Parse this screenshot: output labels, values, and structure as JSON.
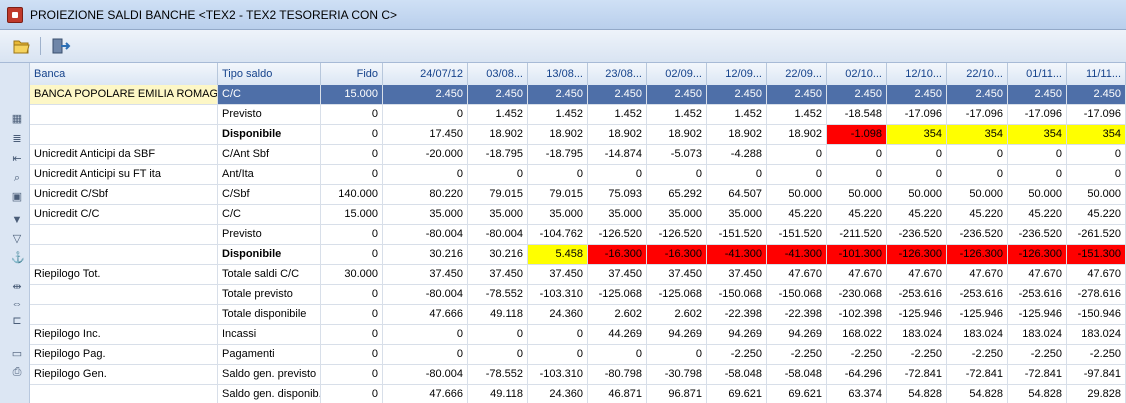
{
  "window": {
    "title": "PROIEZIONE SALDI BANCHE <TEX2 - TEX2 TESORERIA CON C>"
  },
  "toolbar": {
    "icons": [
      "open-folder-icon",
      "exit-icon"
    ]
  },
  "side_icons": [
    "grid-icon",
    "list-icon",
    "import-icon",
    "search-icon",
    "calculator-icon",
    "filter-icon",
    "filter-remove-icon",
    "anchor-icon",
    "expand-columns-icon",
    "collapse-columns-icon",
    "clear-icon",
    "monitor-icon",
    "print-icon"
  ],
  "colors": {
    "selected_row": "#4e6fa8",
    "negative": "#ff0000",
    "warning": "#ffff00",
    "header_text": "#15428b"
  },
  "columns": [
    "Banca",
    "Tipo saldo",
    "Fido",
    "24/07/12",
    "03/08...",
    "13/08...",
    "23/08...",
    "02/09...",
    "12/09...",
    "22/09...",
    "02/10...",
    "12/10...",
    "22/10...",
    "01/11...",
    "11/11..."
  ],
  "rows": [
    {
      "banca": "BANCA POPOLARE EMILIA ROMAGNA",
      "tipo": "C/C",
      "fido": "15.000",
      "values": [
        "2.450",
        "2.450",
        "2.450",
        "2.450",
        "2.450",
        "2.450",
        "2.450",
        "2.450",
        "2.450",
        "2.450",
        "2.450",
        "2.450"
      ],
      "sel": true
    },
    {
      "banca": "",
      "tipo": "Previsto",
      "fido": "0",
      "values": [
        "0",
        "1.452",
        "1.452",
        "1.452",
        "1.452",
        "1.452",
        "1.452",
        "-18.548",
        "-17.096",
        "-17.096",
        "-17.096",
        "-17.096"
      ]
    },
    {
      "banca": "",
      "tipo": "Disponibile",
      "fido": "0",
      "bold": true,
      "values": [
        "17.450",
        "18.902",
        "18.902",
        "18.902",
        "18.902",
        "18.902",
        "18.902",
        "-1.098",
        "354",
        "354",
        "354",
        "354"
      ],
      "marks": [
        "",
        "",
        "",
        "",
        "",
        "",
        "",
        "r",
        "y",
        "y",
        "y",
        "y"
      ]
    },
    {
      "banca": "Unicredit Anticipi da SBF",
      "tipo": "C/Ant Sbf",
      "fido": "0",
      "values": [
        "-20.000",
        "-18.795",
        "-18.795",
        "-14.874",
        "-5.073",
        "-4.288",
        "0",
        "0",
        "0",
        "0",
        "0",
        "0"
      ]
    },
    {
      "banca": "Unicredit Anticipi su FT ita",
      "tipo": "Ant/Ita",
      "fido": "0",
      "values": [
        "0",
        "0",
        "0",
        "0",
        "0",
        "0",
        "0",
        "0",
        "0",
        "0",
        "0",
        "0"
      ]
    },
    {
      "banca": "Unicredit C/Sbf",
      "tipo": "C/Sbf",
      "fido": "140.000",
      "values": [
        "80.220",
        "79.015",
        "79.015",
        "75.093",
        "65.292",
        "64.507",
        "50.000",
        "50.000",
        "50.000",
        "50.000",
        "50.000",
        "50.000"
      ]
    },
    {
      "banca": "Unicredit C/C",
      "tipo": "C/C",
      "fido": "15.000",
      "values": [
        "35.000",
        "35.000",
        "35.000",
        "35.000",
        "35.000",
        "35.000",
        "45.220",
        "45.220",
        "45.220",
        "45.220",
        "45.220",
        "45.220"
      ]
    },
    {
      "banca": "",
      "tipo": "Previsto",
      "fido": "0",
      "values": [
        "-80.004",
        "-80.004",
        "-104.762",
        "-126.520",
        "-126.520",
        "-151.520",
        "-151.520",
        "-211.520",
        "-236.520",
        "-236.520",
        "-236.520",
        "-261.520"
      ]
    },
    {
      "banca": "",
      "tipo": "Disponibile",
      "fido": "0",
      "bold": true,
      "values": [
        "30.216",
        "30.216",
        "5.458",
        "-16.300",
        "-16.300",
        "-41.300",
        "-41.300",
        "-101.300",
        "-126.300",
        "-126.300",
        "-126.300",
        "-151.300"
      ],
      "marks": [
        "",
        "",
        "y",
        "r",
        "r",
        "r",
        "r",
        "r",
        "r",
        "r",
        "r",
        "r"
      ]
    },
    {
      "banca": "Riepilogo Tot.",
      "tipo": "Totale saldi C/C",
      "fido": "30.000",
      "values": [
        "37.450",
        "37.450",
        "37.450",
        "37.450",
        "37.450",
        "37.450",
        "47.670",
        "47.670",
        "47.670",
        "47.670",
        "47.670",
        "47.670"
      ]
    },
    {
      "banca": "",
      "tipo": "Totale previsto",
      "fido": "0",
      "values": [
        "-80.004",
        "-78.552",
        "-103.310",
        "-125.068",
        "-125.068",
        "-150.068",
        "-150.068",
        "-230.068",
        "-253.616",
        "-253.616",
        "-253.616",
        "-278.616"
      ]
    },
    {
      "banca": "",
      "tipo": "Totale disponibile",
      "fido": "0",
      "values": [
        "47.666",
        "49.118",
        "24.360",
        "2.602",
        "2.602",
        "-22.398",
        "-22.398",
        "-102.398",
        "-125.946",
        "-125.946",
        "-125.946",
        "-150.946"
      ]
    },
    {
      "banca": "Riepilogo Inc.",
      "tipo": "Incassi",
      "fido": "0",
      "values": [
        "0",
        "0",
        "0",
        "44.269",
        "94.269",
        "94.269",
        "94.269",
        "168.022",
        "183.024",
        "183.024",
        "183.024",
        "183.024"
      ]
    },
    {
      "banca": "Riepilogo Pag.",
      "tipo": "Pagamenti",
      "fido": "0",
      "values": [
        "0",
        "0",
        "0",
        "0",
        "0",
        "-2.250",
        "-2.250",
        "-2.250",
        "-2.250",
        "-2.250",
        "-2.250",
        "-2.250"
      ]
    },
    {
      "banca": "Riepilogo Gen.",
      "tipo": "Saldo gen. previsto",
      "fido": "0",
      "values": [
        "-80.004",
        "-78.552",
        "-103.310",
        "-80.798",
        "-30.798",
        "-58.048",
        "-58.048",
        "-64.296",
        "-72.841",
        "-72.841",
        "-72.841",
        "-97.841"
      ]
    },
    {
      "banca": "",
      "tipo": "Saldo gen. disponib.",
      "fido": "0",
      "values": [
        "47.666",
        "49.118",
        "24.360",
        "46.871",
        "96.871",
        "69.621",
        "69.621",
        "63.374",
        "54.828",
        "54.828",
        "54.828",
        "29.828"
      ]
    }
  ]
}
